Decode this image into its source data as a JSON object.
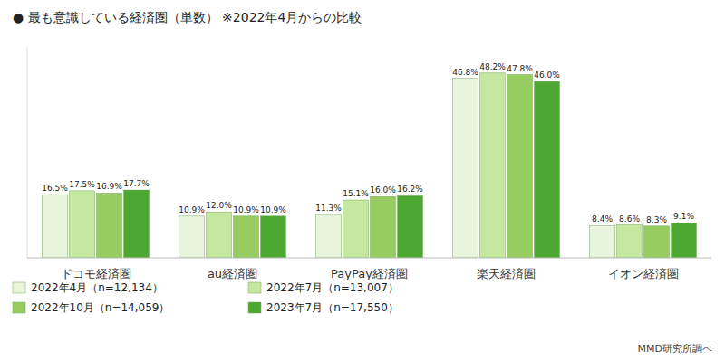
{
  "chart_data": {
    "type": "bar",
    "title": "● 最も意識している経済圏（単数） ※2022年4月からの比較",
    "categories": [
      "ドコモ経済圏",
      "au経済圏",
      "PayPay経済圏",
      "楽天経済圏",
      "イオン経済圏"
    ],
    "series": [
      {
        "name": "2022年4月（n=12,134）",
        "color": "#e8f4dc",
        "values": [
          16.5,
          10.9,
          11.3,
          46.8,
          8.4
        ],
        "value_labels": [
          "16.5%",
          "10.9%",
          "11.3%",
          "46.8%",
          "8.4%"
        ]
      },
      {
        "name": "2022年7月（n=13,007）",
        "color": "#c5e8a0",
        "values": [
          17.5,
          12.0,
          15.1,
          48.2,
          8.6
        ],
        "value_labels": [
          "17.5%",
          "12.0%",
          "15.1%",
          "48.2%",
          "8.6%"
        ]
      },
      {
        "name": "2022年10月（n=14,059）",
        "color": "#96cc60",
        "values": [
          16.9,
          10.9,
          16.0,
          47.8,
          8.3
        ],
        "value_labels": [
          "16.9%",
          "10.9%",
          "16.0%",
          "47.8%",
          "8.3%"
        ]
      },
      {
        "name": "2023年7月（n=17,550）",
        "color": "#4ca830",
        "values": [
          17.7,
          10.9,
          16.2,
          46.0,
          9.1
        ],
        "value_labels": [
          "17.7%",
          "10.9%",
          "16.2%",
          "46.0%",
          "9.1%"
        ]
      }
    ],
    "ylim": [
      0,
      55
    ],
    "grid": false,
    "legend": "bottom",
    "data_labels": true,
    "tick_labels": "x",
    "annotations": [
      "MMD研究所調べ"
    ]
  }
}
